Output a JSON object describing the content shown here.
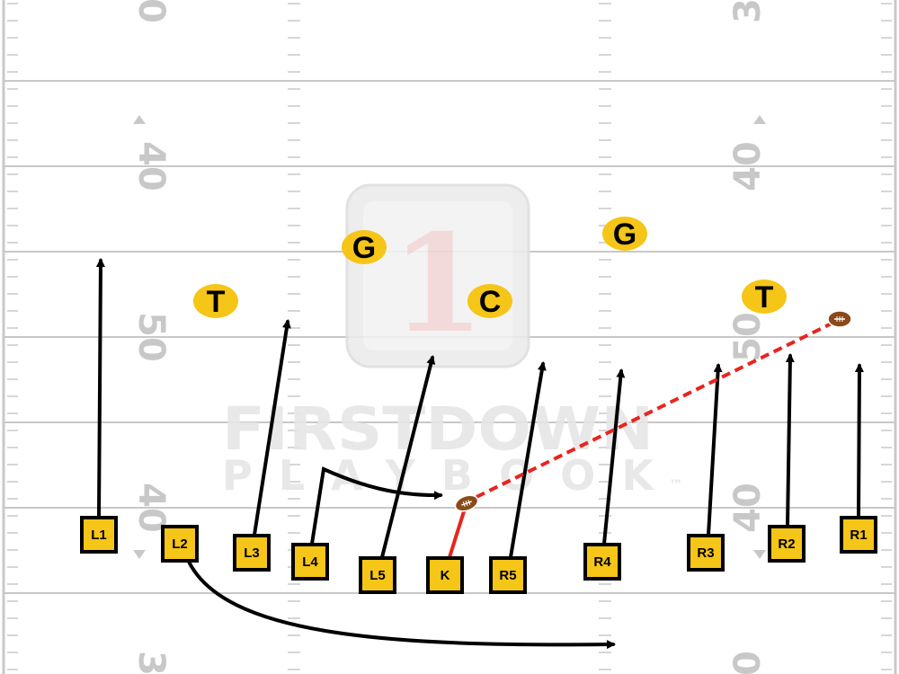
{
  "field": {
    "yard_numbers_left": [
      "0",
      "40",
      "50",
      "40",
      "3"
    ],
    "yard_numbers_right": [
      "3",
      "40",
      "50",
      "40",
      "0"
    ]
  },
  "watermark": {
    "badge_number": "1",
    "brand_line1": "FIRSTDOWN",
    "brand_line2": "PLAYBOOK",
    "trademark": "™"
  },
  "kicking_team": [
    "L1",
    "L2",
    "L3",
    "L4",
    "L5",
    "K",
    "R5",
    "R4",
    "R3",
    "R2",
    "R1"
  ],
  "receiving_team": [
    "T",
    "G",
    "C",
    "G",
    "T"
  ],
  "colors": {
    "player_fill": "#f5c518",
    "player_border": "#000000",
    "route": "#000000",
    "kick_path": "#e8241f",
    "football": "#8b4a1a",
    "yard_lines": "#c8c8c8"
  },
  "icons": {
    "ball": "football-icon"
  }
}
